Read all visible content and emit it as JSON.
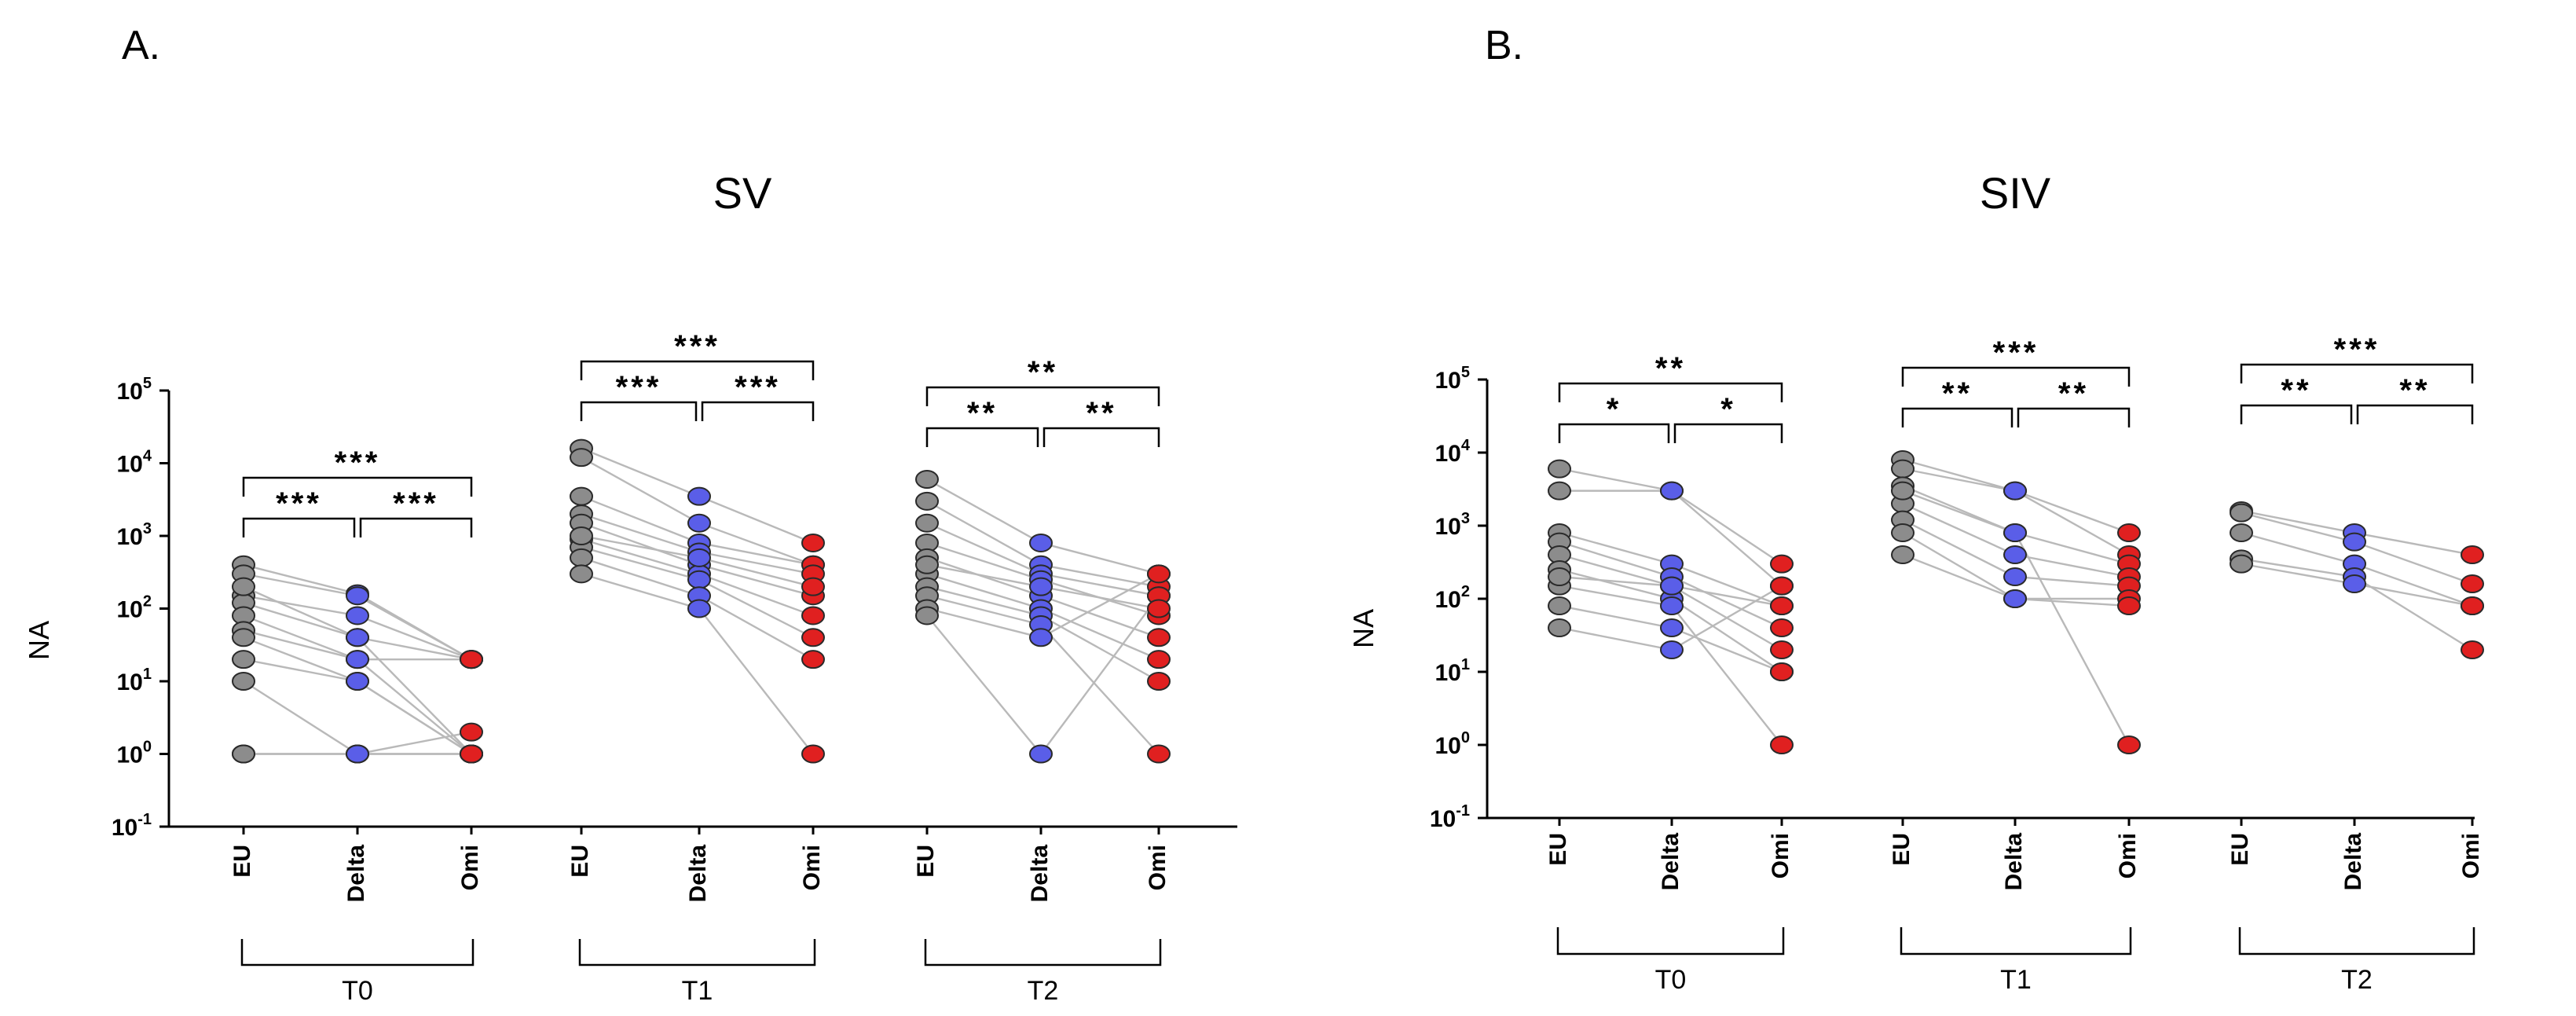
{
  "colors": {
    "EU": "#8c8c8c",
    "Delta": "#5a5ee8",
    "Omi": "#e02020",
    "pair_line": "#b9b9b9"
  },
  "chart_data": [
    {
      "type": "scatter",
      "panel_letter": "A.",
      "title": "SV",
      "ylabel": "NA",
      "yscale": "log",
      "ylim": [
        0.1,
        100000
      ],
      "ytick_labels": [
        {
          "base": "10",
          "exp": "-1"
        },
        {
          "base": "10",
          "exp": "0"
        },
        {
          "base": "10",
          "exp": "1"
        },
        {
          "base": "10",
          "exp": "2"
        },
        {
          "base": "10",
          "exp": "3"
        },
        {
          "base": "10",
          "exp": "4"
        },
        {
          "base": "10",
          "exp": "5"
        }
      ],
      "categories": [
        "EU",
        "Delta",
        "Omi"
      ],
      "groups": [
        {
          "label": "T0",
          "pairs": [
            [
              400,
              160,
              20
            ],
            [
              300,
              150,
              20
            ],
            [
              150,
              80,
              20
            ],
            [
              120,
              40,
              20
            ],
            [
              80,
              20,
              20
            ],
            [
              50,
              20,
              1
            ],
            [
              40,
              10,
              1
            ],
            [
              20,
              10,
              1
            ],
            [
              10,
              1,
              1
            ],
            [
              1,
              1,
              2
            ],
            [
              1,
              1,
              1
            ],
            [
              200,
              40,
              1
            ]
          ],
          "brackets": [
            {
              "from": 0,
              "to": 1,
              "stars": "***",
              "level": 0
            },
            {
              "from": 1,
              "to": 2,
              "stars": "***",
              "level": 0
            },
            {
              "from": 0,
              "to": 2,
              "stars": "***",
              "level": 1
            }
          ]
        },
        {
          "label": "T1",
          "pairs": [
            [
              16000,
              3500,
              800
            ],
            [
              12000,
              1500,
              400
            ],
            [
              3500,
              800,
              400
            ],
            [
              2000,
              600,
              300
            ],
            [
              1500,
              400,
              150
            ],
            [
              900,
              300,
              80
            ],
            [
              700,
              250,
              40
            ],
            [
              500,
              150,
              20
            ],
            [
              300,
              100,
              1
            ],
            [
              1000,
              500,
              200
            ]
          ],
          "brackets": [
            {
              "from": 0,
              "to": 1,
              "stars": "***",
              "level": 0
            },
            {
              "from": 1,
              "to": 2,
              "stars": "***",
              "level": 0
            },
            {
              "from": 0,
              "to": 2,
              "stars": "***",
              "level": 1
            }
          ]
        },
        {
          "label": "T2",
          "pairs": [
            [
              6000,
              800,
              300
            ],
            [
              3000,
              400,
              200
            ],
            [
              1500,
              300,
              150
            ],
            [
              800,
              250,
              80
            ],
            [
              500,
              150,
              40
            ],
            [
              300,
              100,
              20
            ],
            [
              200,
              80,
              10
            ],
            [
              150,
              60,
              1
            ],
            [
              100,
              40,
              300
            ],
            [
              80,
              1,
              150
            ],
            [
              400,
              200,
              100
            ]
          ],
          "brackets": [
            {
              "from": 0,
              "to": 1,
              "stars": "**",
              "level": 0
            },
            {
              "from": 1,
              "to": 2,
              "stars": "**",
              "level": 0
            },
            {
              "from": 0,
              "to": 2,
              "stars": "**",
              "level": 1
            }
          ]
        }
      ]
    },
    {
      "type": "scatter",
      "panel_letter": "B.",
      "title": "SIV",
      "ylabel": "NA",
      "yscale": "log",
      "ylim": [
        0.1,
        100000
      ],
      "ytick_labels": [
        {
          "base": "10",
          "exp": "-1"
        },
        {
          "base": "10",
          "exp": "0"
        },
        {
          "base": "10",
          "exp": "1"
        },
        {
          "base": "10",
          "exp": "2"
        },
        {
          "base": "10",
          "exp": "3"
        },
        {
          "base": "10",
          "exp": "4"
        },
        {
          "base": "10",
          "exp": "5"
        }
      ],
      "categories": [
        "EU",
        "Delta",
        "Omi"
      ],
      "groups": [
        {
          "label": "T0",
          "pairs": [
            [
              6000,
              3000,
              300
            ],
            [
              3000,
              3000,
              150
            ],
            [
              800,
              300,
              80
            ],
            [
              600,
              200,
              40
            ],
            [
              400,
              150,
              20
            ],
            [
              250,
              100,
              10
            ],
            [
              150,
              80,
              1
            ],
            [
              80,
              40,
              10
            ],
            [
              40,
              20,
              150
            ],
            [
              200,
              150,
              80
            ]
          ],
          "brackets": [
            {
              "from": 0,
              "to": 1,
              "stars": "*",
              "level": 0
            },
            {
              "from": 1,
              "to": 2,
              "stars": "*",
              "level": 0
            },
            {
              "from": 0,
              "to": 2,
              "stars": "**",
              "level": 1
            }
          ]
        },
        {
          "label": "T1",
          "pairs": [
            [
              8000,
              3000,
              800
            ],
            [
              6000,
              3000,
              400
            ],
            [
              3500,
              800,
              300
            ],
            [
              2000,
              400,
              200
            ],
            [
              1200,
              200,
              150
            ],
            [
              800,
              100,
              100
            ],
            [
              400,
              100,
              80
            ],
            [
              3000,
              800,
              1
            ]
          ],
          "brackets": [
            {
              "from": 0,
              "to": 1,
              "stars": "**",
              "level": 0
            },
            {
              "from": 1,
              "to": 2,
              "stars": "**",
              "level": 0
            },
            {
              "from": 0,
              "to": 2,
              "stars": "***",
              "level": 1
            }
          ]
        },
        {
          "label": "T2",
          "pairs": [
            [
              1600,
              800,
              400
            ],
            [
              1500,
              600,
              160
            ],
            [
              800,
              300,
              80
            ],
            [
              350,
              200,
              20
            ],
            [
              300,
              160,
              80
            ]
          ],
          "brackets": [
            {
              "from": 0,
              "to": 1,
              "stars": "**",
              "level": 0
            },
            {
              "from": 1,
              "to": 2,
              "stars": "**",
              "level": 0
            },
            {
              "from": 0,
              "to": 2,
              "stars": "***",
              "level": 1
            }
          ]
        }
      ]
    }
  ]
}
